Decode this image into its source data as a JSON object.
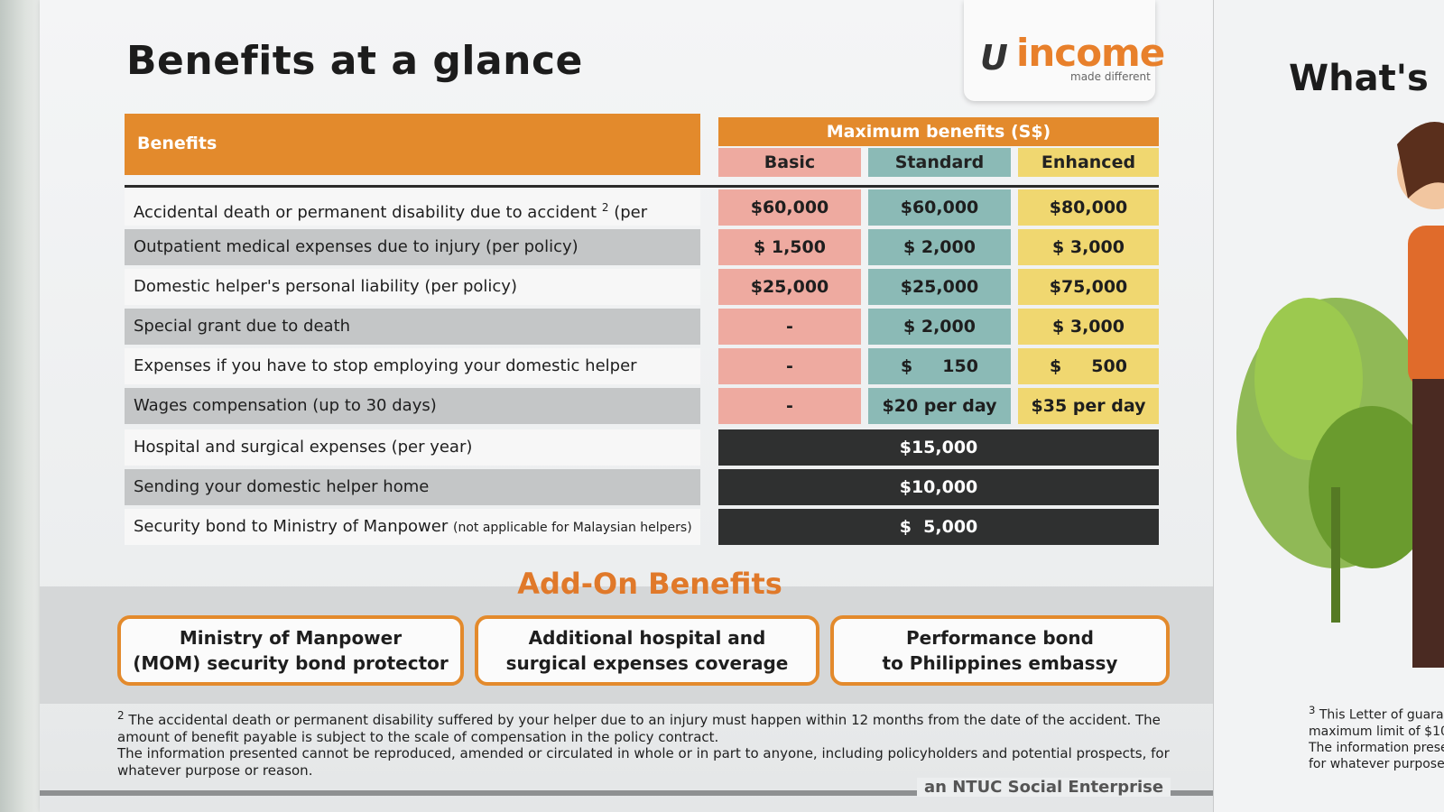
{
  "page": {
    "title": "Benefits at a glance",
    "logo": {
      "mark": "U",
      "word": "income",
      "tagline": "made different"
    }
  },
  "table": {
    "benefits_header": "Benefits",
    "max_header": "Maximum benefits (S$)",
    "plans": [
      "Basic",
      "Standard",
      "Enhanced"
    ],
    "rows": [
      {
        "label": "Accidental death or permanent disability due to accident",
        "sup": "2",
        "suffix": " (per policy)",
        "basic": "$60,000",
        "standard": "$60,000",
        "enhanced": "$80,000"
      },
      {
        "label": "Outpatient medical expenses due to injury (per policy)",
        "basic": "$  1,500",
        "standard": "$  2,000",
        "enhanced": "$  3,000"
      },
      {
        "label": "Domestic helper's personal liability (per policy)",
        "basic": "$25,000",
        "standard": "$25,000",
        "enhanced": "$75,000"
      },
      {
        "label": "Special grant due to death",
        "basic": "-",
        "standard": "$  2,000",
        "enhanced": "$  3,000"
      },
      {
        "label": "Expenses if you have to stop employing your domestic helper",
        "basic": "-",
        "standard": "$     150",
        "enhanced": "$     500"
      },
      {
        "label": "Wages compensation (up to 30 days)",
        "basic": "-",
        "standard": "$20 per day",
        "enhanced": "$35 per day"
      },
      {
        "label": "Hospital and surgical expenses (per year)",
        "all": "$15,000"
      },
      {
        "label": "Sending your domestic helper home",
        "all": "$10,000"
      },
      {
        "label": "Security bond to Ministry of Manpower",
        "note": "(not applicable  for Malaysian helpers)",
        "all": "$  5,000"
      }
    ]
  },
  "addons": {
    "title": "Add-On Benefits",
    "items": [
      {
        "line1": "Ministry of Manpower",
        "line2": "(MOM) security bond protector"
      },
      {
        "line1": "Additional hospital and",
        "line2": "surgical expenses coverage"
      },
      {
        "line1": "Performance bond",
        "line2": "to Philippines embassy"
      }
    ]
  },
  "footnotes": {
    "fn2_num": "2",
    "fn2": "The accidental death or permanent disability suffered by your helper due to an injury must happen within 12 months from the date of the accident. The amount of benefit payable is subject to the scale of compensation in the policy contract.",
    "disclaimer": "The information presented cannot be reproduced, amended or circulated in whole or in part to anyone, including policyholders and potential prospects, for whatever purpose or reason.",
    "enterprise": "an NTUC Social Enterprise"
  },
  "next_page": {
    "title": "What's i",
    "fn3_num": "3",
    "fn3_line1": "This Letter of guara",
    "fn3_line2": "maximum limit of $10",
    "fn_line3": "The information prese",
    "fn_line4": "for whatever purpose"
  },
  "colors": {
    "orange": "#e38a2c",
    "basic": "#eeaaa0",
    "standard": "#8bbab6",
    "enhanced": "#f0d770",
    "dark_cell": "#2f3030"
  }
}
